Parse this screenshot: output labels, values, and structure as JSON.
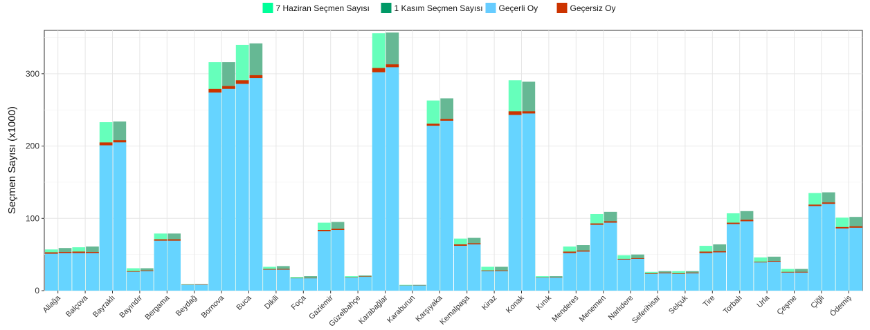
{
  "chart_data": {
    "type": "bar",
    "ylabel": "Seçmen Sayısı (x1000)",
    "xlabel": "",
    "ylim": [
      0,
      360
    ],
    "yticks": [
      0,
      100,
      200,
      300
    ],
    "grid": true,
    "legend_position": "top",
    "categories": [
      "Aliağa",
      "Balçova",
      "Bayraklı",
      "Bayındır",
      "Bergama",
      "Beydağ",
      "Bornova",
      "Buca",
      "Dikili",
      "Foça",
      "Gaziemir",
      "Güzelbahçe",
      "Karabağlar",
      "Karaburun",
      "Karşıyaka",
      "Kemalpaşa",
      "Kiraz",
      "Konak",
      "Kınık",
      "Menderes",
      "Menemen",
      "Narlıdere",
      "Seferihisar",
      "Selçuk",
      "Tire",
      "Torbalı",
      "Urla",
      "Çeşme",
      "Çiğli",
      "Ödemiş"
    ],
    "legend": [
      {
        "name": "7 Haziran Seçmen Sayısı",
        "color": "#00ff99"
      },
      {
        "name": "1 Kasım Seçmen Sayısı",
        "color": "#009966"
      },
      {
        "name": "Geçerli Oy",
        "color": "#66ccff"
      },
      {
        "name": "Geçersiz Oy",
        "color": "#cc3300"
      }
    ],
    "series": [
      {
        "name": "7 Haziran Seçmen Sayısı",
        "values": [
          57,
          60,
          233,
          31,
          79,
          9,
          316,
          340,
          33,
          19,
          94,
          20,
          356,
          8,
          263,
          72,
          33,
          291,
          20,
          61,
          106,
          49,
          26,
          27,
          62,
          107,
          46,
          30,
          135,
          101
        ]
      },
      {
        "name": "7 Haziran Geçerli Oy",
        "values": [
          51,
          52,
          201,
          26,
          69,
          8,
          274,
          286,
          29,
          17,
          82,
          18,
          302,
          7,
          228,
          62,
          27,
          243,
          18,
          52,
          91,
          43,
          23,
          23,
          52,
          92,
          39,
          25,
          117,
          86
        ]
      },
      {
        "name": "7 Haziran Geçersiz Oy",
        "values": [
          2,
          2,
          4,
          1,
          2,
          0.5,
          5,
          5,
          1,
          0.5,
          2,
          0.5,
          6,
          0.3,
          3,
          2,
          1,
          5,
          0.5,
          2,
          2,
          1,
          1,
          1,
          2,
          2,
          1,
          1,
          2,
          2
        ]
      },
      {
        "name": "1 Kasım Seçmen Sayısı",
        "values": [
          59,
          61,
          234,
          31,
          79,
          9,
          316,
          342,
          34,
          20,
          95,
          21,
          357,
          8,
          266,
          73,
          33,
          289,
          20,
          63,
          109,
          50,
          27,
          27,
          64,
          110,
          47,
          30,
          136,
          102
        ]
      },
      {
        "name": "1 Kasım Geçerli Oy",
        "values": [
          52,
          52,
          205,
          27,
          69,
          8,
          279,
          294,
          29,
          17,
          84,
          19,
          309,
          7,
          235,
          64,
          27,
          245,
          18,
          54,
          94,
          44,
          24,
          24,
          53,
          96,
          40,
          25,
          120,
          87
        ]
      },
      {
        "name": "1 Kasım Geçersiz Oy",
        "values": [
          1.5,
          1.5,
          3,
          1,
          2,
          0.5,
          4,
          4,
          1,
          0.5,
          1.5,
          0.5,
          4,
          0.3,
          2.5,
          1.5,
          1,
          3,
          0.5,
          1.5,
          2,
          1,
          1,
          1,
          1.5,
          2,
          1,
          1,
          2,
          2
        ]
      }
    ]
  }
}
